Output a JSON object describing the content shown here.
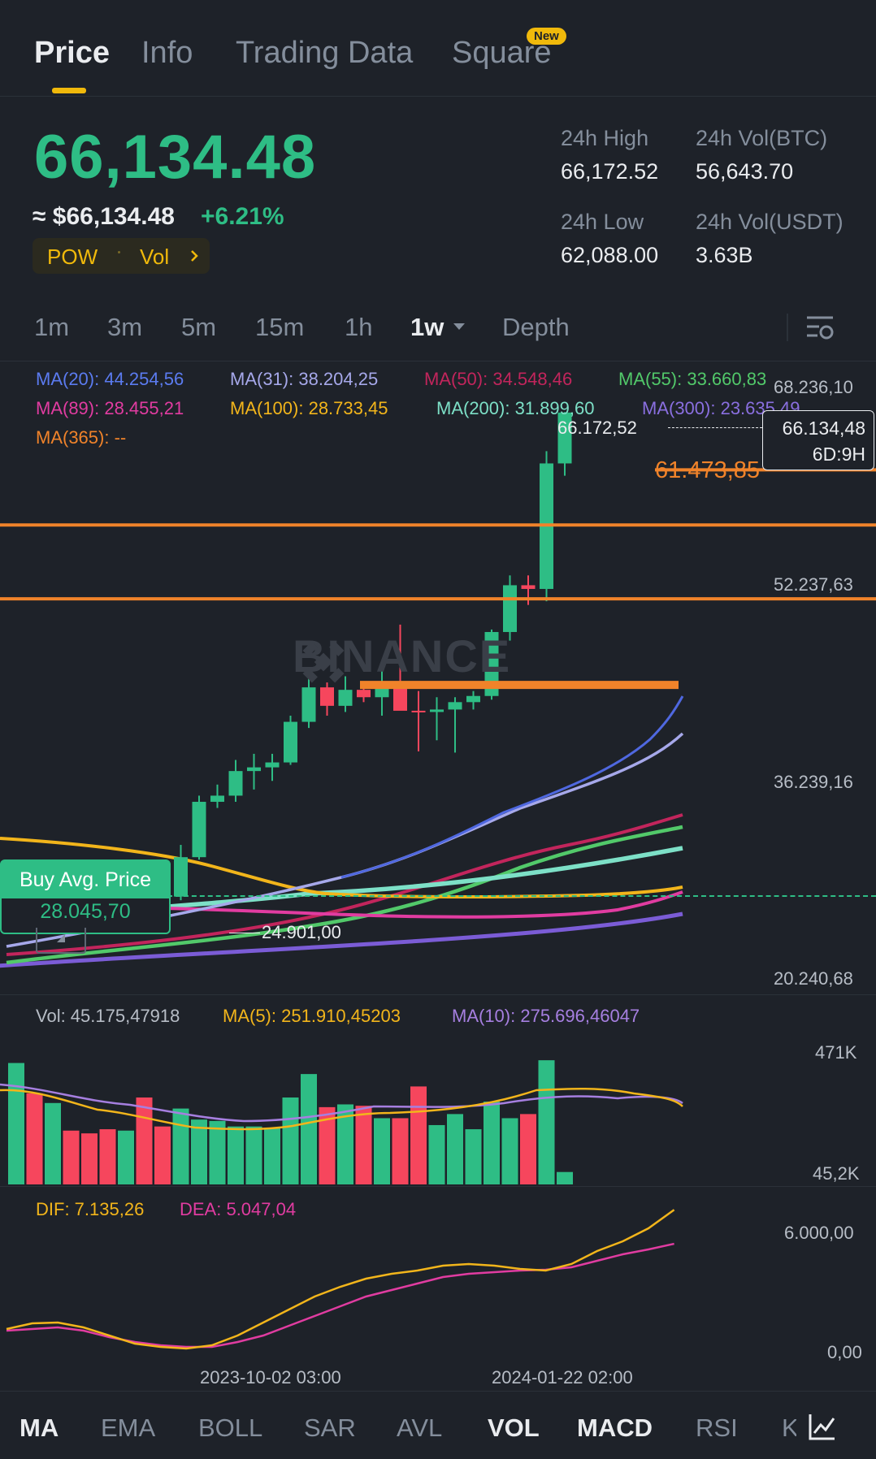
{
  "tabs": [
    {
      "label": "Price",
      "active": true
    },
    {
      "label": "Info",
      "active": false
    },
    {
      "label": "Trading Data",
      "active": false
    },
    {
      "label": "Square",
      "active": false
    }
  ],
  "new_badge": "New",
  "ticker": {
    "last_price": "66,134.48",
    "usd_price": "≈ $66,134.48",
    "change_pct": "+6.21%",
    "tag_pow": "POW",
    "tag_vol": "Vol",
    "high_label": "24h High",
    "high_value": "66,172.52",
    "low_label": "24h Low",
    "low_value": "62,088.00",
    "vol_btc_label": "24h Vol(BTC)",
    "vol_btc_value": "56,643.70",
    "vol_usdt_label": "24h Vol(USDT)",
    "vol_usdt_value": "3.63B"
  },
  "intervals": [
    "1m",
    "3m",
    "5m",
    "15m",
    "1h",
    "1w",
    "Depth"
  ],
  "active_interval": "1w",
  "moving_averages": {
    "ma20": "MA(20): 44.254,56",
    "ma31": "MA(31): 38.204,25",
    "ma50": "MA(50): 34.548,46",
    "ma55": "MA(55): 33.660,83",
    "ma89": "MA(89): 28.455,21",
    "ma100": "MA(100): 28.733,45",
    "ma200": "MA(200): 31.899,60",
    "ma300": "MA(300): 23.635,49",
    "ma365": "MA(365): --"
  },
  "price_axis": [
    "68.236,10",
    "52.237,63",
    "36.239,16",
    "20.240,68"
  ],
  "chart_annotations": {
    "high_marker": "66.172,52",
    "low_marker": "24.901,00",
    "orange_level": "61.473,85",
    "current_price": "66.134,48",
    "countdown": "6D:9H",
    "buy_avg_label": "Buy Avg. Price",
    "buy_avg_value": "28.045,70",
    "watermark": "BINANCE"
  },
  "volume": {
    "vol": "Vol: 45.175,47918",
    "ma5": "MA(5): 251.910,45203",
    "ma10": "MA(10): 275.696,46047",
    "axis_top": "471K",
    "axis_bottom": "45,2K"
  },
  "macd": {
    "dif": "DIF: 7.135,26",
    "dea": "DEA: 5.047,04",
    "axis_top": "6.000,00",
    "axis_bottom": "0,00"
  },
  "time_axis": [
    "2023-10-02 03:00",
    "2024-01-22 02:00"
  ],
  "indicators": [
    {
      "label": "MA",
      "active": true
    },
    {
      "label": "EMA",
      "active": false
    },
    {
      "label": "BOLL",
      "active": false
    },
    {
      "label": "SAR",
      "active": false
    },
    {
      "label": "AVL",
      "active": false
    },
    {
      "label": "VOL",
      "active": true
    },
    {
      "label": "MACD",
      "active": true
    },
    {
      "label": "RSI",
      "active": false
    },
    {
      "label": "K",
      "active": false
    }
  ],
  "colors": {
    "up": "#2ebd85",
    "down": "#f6465d",
    "accent": "#f0b90b",
    "orange_line": "#f0832a"
  },
  "chart_data": {
    "type": "candlestick",
    "interval": "1w",
    "candles": [
      {
        "o": 26600,
        "h": 27300,
        "l": 25900,
        "c": 26300
      },
      {
        "o": 26300,
        "h": 26700,
        "l": 25600,
        "c": 25800
      },
      {
        "o": 25800,
        "h": 26300,
        "l": 25700,
        "c": 26000
      },
      {
        "o": 26000,
        "h": 26500,
        "l": 25500,
        "c": 25900
      },
      {
        "o": 25900,
        "h": 27400,
        "l": 25800,
        "c": 26800
      },
      {
        "o": 26800,
        "h": 27200,
        "l": 26000,
        "c": 26400
      },
      {
        "o": 26400,
        "h": 27700,
        "l": 26200,
        "c": 27400
      },
      {
        "o": 27400,
        "h": 28200,
        "l": 26800,
        "c": 27200
      },
      {
        "o": 27200,
        "h": 28400,
        "l": 26700,
        "c": 26800
      },
      {
        "o": 26800,
        "h": 31000,
        "l": 26500,
        "c": 30000
      },
      {
        "o": 30000,
        "h": 35000,
        "l": 29800,
        "c": 34500
      },
      {
        "o": 34500,
        "h": 35900,
        "l": 34000,
        "c": 35000
      },
      {
        "o": 35000,
        "h": 37900,
        "l": 34500,
        "c": 37000
      },
      {
        "o": 37000,
        "h": 38400,
        "l": 35500,
        "c": 37300
      },
      {
        "o": 37300,
        "h": 38400,
        "l": 36200,
        "c": 37700
      },
      {
        "o": 37700,
        "h": 41500,
        "l": 37500,
        "c": 41000
      },
      {
        "o": 41000,
        "h": 44700,
        "l": 40500,
        "c": 43800
      },
      {
        "o": 43800,
        "h": 44200,
        "l": 41500,
        "c": 42300
      },
      {
        "o": 42300,
        "h": 44700,
        "l": 41800,
        "c": 43600
      },
      {
        "o": 43600,
        "h": 44300,
        "l": 42600,
        "c": 43000
      },
      {
        "o": 43000,
        "h": 45900,
        "l": 41500,
        "c": 43800
      },
      {
        "o": 43800,
        "h": 48900,
        "l": 42000,
        "c": 41900
      },
      {
        "o": 41900,
        "h": 43500,
        "l": 38600,
        "c": 41800
      },
      {
        "o": 41800,
        "h": 43000,
        "l": 39500,
        "c": 42000
      },
      {
        "o": 42000,
        "h": 43000,
        "l": 38500,
        "c": 42600
      },
      {
        "o": 42600,
        "h": 43500,
        "l": 42000,
        "c": 43100
      },
      {
        "o": 43100,
        "h": 48500,
        "l": 42800,
        "c": 48300
      },
      {
        "o": 48300,
        "h": 52900,
        "l": 47600,
        "c": 52100
      },
      {
        "o": 52100,
        "h": 52900,
        "l": 50500,
        "c": 51800
      },
      {
        "o": 51800,
        "h": 63000,
        "l": 50800,
        "c": 62000
      },
      {
        "o": 62000,
        "h": 66172.52,
        "l": 61000,
        "c": 66134.48
      }
    ],
    "price_range": [
      20240.68,
      68236.1
    ],
    "horizontal_levels": [
      61473.85,
      57000,
      51000,
      44000
    ],
    "volume": {
      "values": [
        440,
        330,
        295,
        195,
        185,
        200,
        195,
        315,
        210,
        275,
        235,
        230,
        210,
        210,
        205,
        315,
        400,
        280,
        290,
        285,
        240,
        240,
        355,
        215,
        255,
        200,
        300,
        240,
        255,
        450,
        45
      ],
      "up": [
        true,
        false,
        true,
        false,
        false,
        false,
        true,
        false,
        false,
        true,
        true,
        true,
        true,
        true,
        true,
        true,
        true,
        false,
        true,
        false,
        true,
        false,
        false,
        true,
        true,
        true,
        true,
        true,
        false,
        true,
        true
      ],
      "range": [
        45.2,
        471
      ]
    },
    "macd": {
      "dif": [
        -200,
        150,
        200,
        -100,
        -600,
        -1100,
        -1300,
        -1400,
        -1200,
        -600,
        200,
        1000,
        1800,
        2400,
        2900,
        3200,
        3400,
        3700,
        3800,
        3700,
        3500,
        3400,
        3800,
        4600,
        5200,
        6000,
        7135.26
      ],
      "dea": [
        -300,
        -200,
        -100,
        -300,
        -700,
        -1000,
        -1200,
        -1300,
        -1300,
        -1000,
        -600,
        0,
        600,
        1200,
        1800,
        2200,
        2600,
        3000,
        3200,
        3300,
        3400,
        3450,
        3600,
        4000,
        4400,
        4700,
        5047.04
      ],
      "range": [
        -1500,
        8000
      ]
    }
  }
}
